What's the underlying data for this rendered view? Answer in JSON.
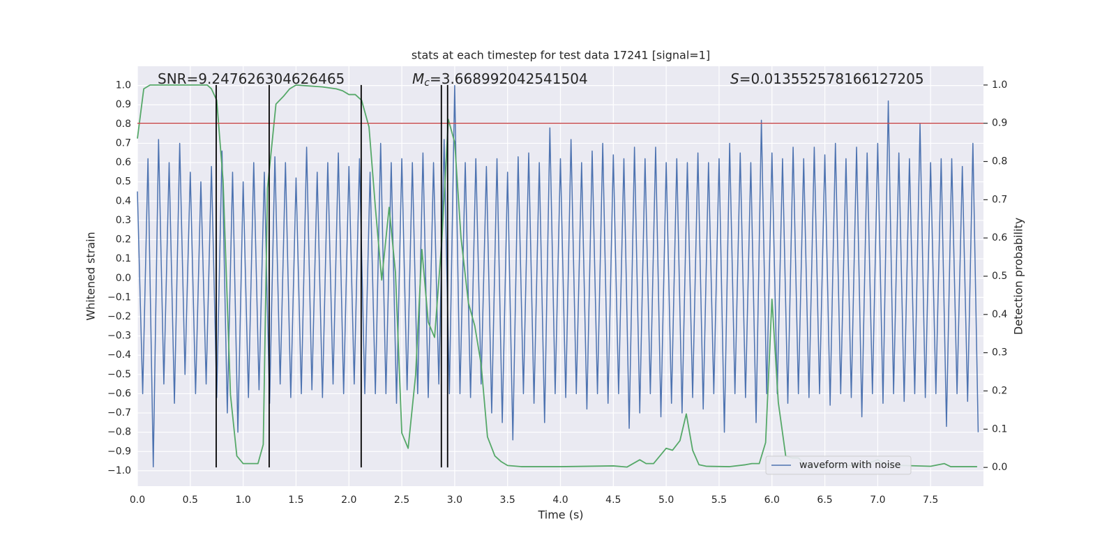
{
  "chart_data": {
    "type": "line",
    "title": "stats at each timestep for test data 17241 [signal=1]",
    "xlabel": "Time (s)",
    "ylabel": "Whitened strain",
    "y2label": "Detection probability",
    "annotations": [
      {
        "text": "SNR=9.247626304626465"
      },
      {
        "symbol": "M",
        "subscript": "c",
        "text": "=3.668992042541504"
      },
      {
        "symbol": "S",
        "text": "=0.013552578166127205"
      }
    ],
    "xlim": [
      0,
      8
    ],
    "ylim": [
      -1.08,
      1.1
    ],
    "y2lim": [
      -0.049,
      1.049
    ],
    "xticks": [
      {
        "value": 0,
        "label": "0.0"
      },
      0.5,
      {
        "value": 1,
        "label": "1.0"
      },
      1.5,
      {
        "value": 2,
        "label": "2.0"
      },
      2.5,
      {
        "value": 3,
        "label": "3.0"
      },
      3.5,
      {
        "value": 4,
        "label": "4.0"
      },
      4.5,
      {
        "value": 5,
        "label": "5.0"
      },
      5.5,
      {
        "value": 6,
        "label": "6.0"
      },
      6.5,
      {
        "value": 7,
        "label": "7.0"
      },
      7.5
    ],
    "yticks": [
      {
        "value": -1,
        "label": "−1.0"
      },
      {
        "value": -0.9,
        "label": "−0.9"
      },
      {
        "value": -0.8,
        "label": "−0.8"
      },
      {
        "value": -0.7,
        "label": "−0.7"
      },
      {
        "value": -0.6,
        "label": "−0.6"
      },
      {
        "value": -0.5,
        "label": "−0.5"
      },
      {
        "value": -0.4,
        "label": "−0.4"
      },
      {
        "value": -0.3,
        "label": "−0.3"
      },
      {
        "value": -0.2,
        "label": "−0.2"
      },
      {
        "value": -0.1,
        "label": "−0.1"
      },
      {
        "value": 0,
        "label": "0.0"
      },
      0.1,
      0.2,
      0.3,
      0.4,
      0.5,
      0.6,
      0.7,
      0.8,
      0.9,
      {
        "value": 1,
        "label": "1.0"
      }
    ],
    "y2ticks": [
      {
        "value": 0,
        "label": "0.0"
      },
      0.1,
      0.2,
      0.3,
      0.4,
      0.5,
      0.6,
      0.7,
      0.8,
      0.9,
      {
        "value": 1,
        "label": "1.0"
      }
    ],
    "grid": true,
    "legend": "lower right",
    "series": [
      {
        "name": "waveform with noise",
        "color": "#4c72b0",
        "x": [
          0.0,
          0.05,
          0.1,
          0.15,
          0.2,
          0.25,
          0.3,
          0.35,
          0.4,
          0.45,
          0.5,
          0.55,
          0.6,
          0.65,
          0.7,
          0.75,
          0.8,
          0.85,
          0.9,
          0.95,
          1.0,
          1.05,
          1.1,
          1.15,
          1.2,
          1.25,
          1.3,
          1.35,
          1.4,
          1.45,
          1.5,
          1.55,
          1.6,
          1.65,
          1.7,
          1.75,
          1.8,
          1.85,
          1.9,
          1.95,
          2.0,
          2.05,
          2.1,
          2.15,
          2.2,
          2.25,
          2.3,
          2.35,
          2.4,
          2.45,
          2.5,
          2.55,
          2.6,
          2.65,
          2.7,
          2.75,
          2.8,
          2.85,
          2.9,
          2.95,
          3.0,
          3.05,
          3.1,
          3.15,
          3.2,
          3.25,
          3.3,
          3.35,
          3.4,
          3.45,
          3.5,
          3.55,
          3.6,
          3.65,
          3.7,
          3.75,
          3.8,
          3.85,
          3.9,
          3.95,
          4.0,
          4.05,
          4.1,
          4.15,
          4.2,
          4.25,
          4.3,
          4.35,
          4.4,
          4.45,
          4.5,
          4.55,
          4.6,
          4.65,
          4.7,
          4.75,
          4.8,
          4.85,
          4.9,
          4.95,
          5.0,
          5.05,
          5.1,
          5.15,
          5.2,
          5.25,
          5.3,
          5.35,
          5.4,
          5.45,
          5.5,
          5.55,
          5.6,
          5.65,
          5.7,
          5.75,
          5.8,
          5.85,
          5.9,
          5.95,
          6.0,
          6.05,
          6.1,
          6.15,
          6.2,
          6.25,
          6.3,
          6.35,
          6.4,
          6.45,
          6.5,
          6.55,
          6.6,
          6.65,
          6.7,
          6.75,
          6.8,
          6.85,
          6.9,
          6.95,
          7.0,
          7.05,
          7.1,
          7.15,
          7.2,
          7.25,
          7.3,
          7.35,
          7.4,
          7.45,
          7.5,
          7.55,
          7.6,
          7.65,
          7.7,
          7.75,
          7.8,
          7.85,
          7.9,
          7.95
        ],
        "values": [
          0.45,
          -0.6,
          0.62,
          -0.98,
          0.72,
          -0.55,
          0.6,
          -0.65,
          0.7,
          -0.5,
          0.55,
          -0.6,
          0.5,
          -0.55,
          0.58,
          -0.62,
          0.66,
          -0.7,
          0.55,
          -0.8,
          0.5,
          -0.62,
          0.6,
          -0.58,
          0.55,
          -0.65,
          0.63,
          -0.55,
          0.6,
          -0.62,
          0.52,
          -0.6,
          0.68,
          -0.58,
          0.55,
          -0.62,
          0.6,
          -0.55,
          0.65,
          -0.6,
          0.58,
          -0.55,
          0.62,
          -0.6,
          0.55,
          -0.6,
          0.7,
          -0.6,
          0.6,
          -0.65,
          0.62,
          -0.58,
          0.6,
          -0.6,
          0.65,
          -0.62,
          0.6,
          -0.55,
          0.72,
          -0.6,
          1.0,
          -0.6,
          0.6,
          -0.62,
          0.62,
          -0.55,
          0.58,
          -0.7,
          0.62,
          -0.75,
          0.55,
          -0.84,
          0.63,
          -0.6,
          0.65,
          -0.65,
          0.6,
          -0.75,
          0.78,
          -0.6,
          0.62,
          -0.62,
          0.72,
          -0.6,
          0.6,
          -0.68,
          0.66,
          -0.6,
          0.7,
          -0.65,
          0.64,
          -0.6,
          0.62,
          -0.78,
          0.68,
          -0.7,
          0.62,
          -0.6,
          0.68,
          -0.72,
          0.6,
          -0.65,
          0.62,
          -0.7,
          0.6,
          -0.62,
          0.65,
          -0.68,
          0.6,
          -0.6,
          0.62,
          -0.8,
          0.7,
          -0.6,
          0.65,
          -0.62,
          0.6,
          -0.75,
          0.82,
          -0.6,
          0.65,
          -0.6,
          0.62,
          -0.65,
          0.68,
          -0.6,
          0.62,
          -0.62,
          0.68,
          -0.6,
          0.64,
          -0.66,
          0.7,
          -0.6,
          0.62,
          -0.62,
          0.68,
          -0.72,
          0.65,
          -0.6,
          0.7,
          -0.65,
          0.92,
          -0.6,
          0.65,
          -0.64,
          0.62,
          -0.6,
          0.8,
          -0.62,
          0.6,
          -0.6,
          0.62,
          -0.77,
          0.62,
          -0.6,
          0.58,
          -0.64,
          0.7,
          -0.8
        ]
      },
      {
        "color": "#55a868",
        "axis": "y2",
        "x": [
          0.0,
          0.06,
          0.12,
          0.3,
          0.5,
          0.66,
          0.7,
          0.75,
          0.81,
          0.88,
          0.94,
          1.0,
          1.08,
          1.14,
          1.19,
          1.23,
          1.31,
          1.38,
          1.44,
          1.5,
          1.75,
          1.88,
          1.94,
          2.0,
          2.06,
          2.12,
          2.19,
          2.25,
          2.31,
          2.38,
          2.44,
          2.5,
          2.56,
          2.63,
          2.69,
          2.75,
          2.81,
          2.88,
          2.94,
          3.0,
          3.06,
          3.13,
          3.19,
          3.25,
          3.31,
          3.38,
          3.44,
          3.5,
          3.63,
          4.0,
          4.5,
          4.63,
          4.75,
          4.81,
          4.88,
          4.94,
          5.0,
          5.06,
          5.13,
          5.19,
          5.25,
          5.31,
          5.38,
          5.6,
          5.75,
          5.81,
          5.88,
          5.94,
          6.0,
          6.06,
          6.13,
          6.19,
          6.25,
          6.31,
          6.38,
          6.75,
          6.88,
          7.0,
          7.06,
          7.13,
          7.5,
          7.63,
          7.69,
          7.94
        ],
        "values": [
          0.86,
          0.99,
          1.0,
          1.0,
          1.0,
          1.0,
          0.99,
          0.96,
          0.75,
          0.19,
          0.03,
          0.01,
          0.01,
          0.01,
          0.06,
          0.73,
          0.95,
          0.97,
          0.99,
          1.0,
          0.995,
          0.99,
          0.985,
          0.975,
          0.975,
          0.96,
          0.89,
          0.68,
          0.49,
          0.68,
          0.51,
          0.09,
          0.05,
          0.24,
          0.57,
          0.38,
          0.34,
          0.6,
          0.91,
          0.85,
          0.6,
          0.43,
          0.37,
          0.27,
          0.08,
          0.03,
          0.015,
          0.005,
          0.002,
          0.002,
          0.004,
          0.001,
          0.02,
          0.01,
          0.01,
          0.03,
          0.05,
          0.045,
          0.07,
          0.14,
          0.045,
          0.007,
          0.003,
          0.002,
          0.007,
          0.01,
          0.01,
          0.065,
          0.44,
          0.17,
          0.03,
          0.025,
          0.025,
          0.007,
          0.003,
          0.005,
          0.008,
          0.02,
          0.01,
          0.006,
          0.003,
          0.01,
          0.002,
          0.002
        ]
      }
    ],
    "hlines": [
      {
        "y": 0.9,
        "axis": "y2",
        "color": "#c44e52"
      }
    ],
    "vlines": {
      "x": [
        0.745,
        1.246,
        2.116,
        2.874,
        2.933
      ],
      "ylim": [
        0,
        1
      ],
      "axis": "y2",
      "color": "#000000"
    }
  }
}
